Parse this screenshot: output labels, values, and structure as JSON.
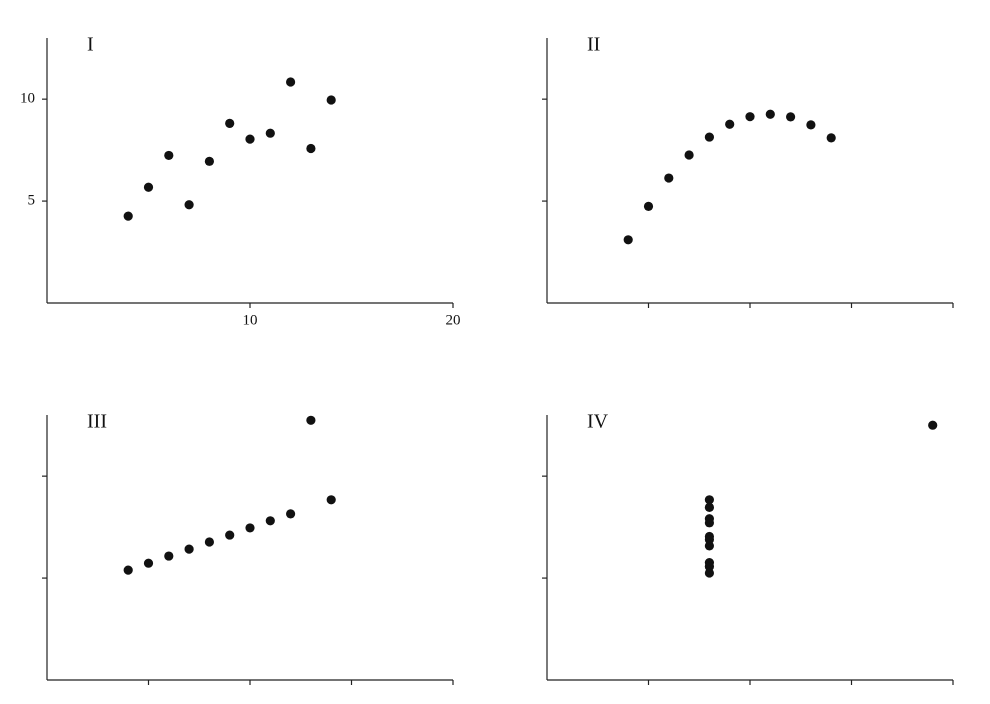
{
  "chart_data": [
    {
      "type": "scatter",
      "title": "I",
      "x": [
        10,
        8,
        13,
        9,
        11,
        14,
        6,
        4,
        12,
        7,
        5
      ],
      "series": [
        {
          "color": "#111111",
          "values": [
            8.04,
            6.95,
            7.58,
            8.81,
            8.33,
            9.96,
            7.24,
            4.26,
            10.84,
            4.82,
            5.68
          ]
        }
      ],
      "xlim": [
        0,
        20
      ],
      "ylim": [
        0,
        13
      ],
      "xticks": [
        10,
        20
      ],
      "yticks": [
        5,
        10
      ],
      "tick_labels": true
    },
    {
      "type": "scatter",
      "title": "II",
      "x": [
        10,
        8,
        13,
        9,
        11,
        14,
        6,
        4,
        12,
        7,
        5
      ],
      "series": [
        {
          "color": "#111111",
          "values": [
            9.14,
            8.14,
            8.74,
            8.77,
            9.26,
            8.1,
            6.13,
            3.1,
            9.13,
            7.26,
            4.74
          ]
        }
      ],
      "xlim": [
        0,
        20
      ],
      "ylim": [
        0,
        13
      ],
      "xticks": [
        5,
        10,
        15,
        20
      ],
      "yticks": [
        5,
        10
      ],
      "tick_labels": false
    },
    {
      "type": "scatter",
      "title": "III",
      "x": [
        10,
        8,
        13,
        9,
        11,
        14,
        6,
        4,
        12,
        7,
        5
      ],
      "series": [
        {
          "color": "#111111",
          "values": [
            7.46,
            6.77,
            12.74,
            7.11,
            7.81,
            8.84,
            6.08,
            5.39,
            8.15,
            6.42,
            5.73
          ]
        }
      ],
      "xlim": [
        0,
        20
      ],
      "ylim": [
        0,
        13
      ],
      "xticks": [
        5,
        10,
        15,
        20
      ],
      "yticks": [
        5,
        10
      ],
      "tick_labels": false
    },
    {
      "type": "scatter",
      "title": "IV",
      "x": [
        8,
        8,
        8,
        8,
        8,
        8,
        8,
        19,
        8,
        8,
        8
      ],
      "series": [
        {
          "color": "#111111",
          "values": [
            6.58,
            5.76,
            7.71,
            8.84,
            8.47,
            7.04,
            5.25,
            12.5,
            5.56,
            7.91,
            6.89
          ]
        }
      ],
      "xlim": [
        0,
        20
      ],
      "ylim": [
        0,
        13
      ],
      "xticks": [
        5,
        10,
        15,
        20
      ],
      "yticks": [
        5,
        10
      ],
      "tick_labels": false
    }
  ]
}
